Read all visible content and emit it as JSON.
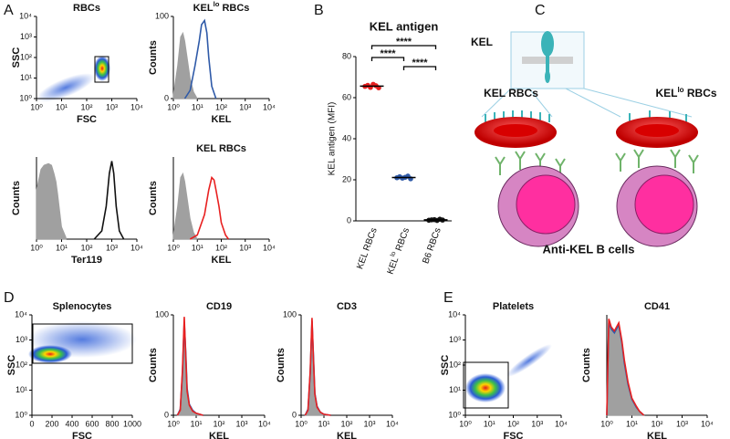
{
  "panel_labels": [
    "A",
    "B",
    "C",
    "D",
    "E"
  ],
  "diagram": {
    "kel": "KEL",
    "left": "KEL RBCs",
    "right": [
      "KEL",
      "lo",
      " RBCs"
    ],
    "bottom": "Anti-KEL B cells"
  },
  "chart_data": [
    {
      "type": "density",
      "title": "RBCs",
      "xlabel": "FSC",
      "ylabel": "SSC",
      "xscale": "log",
      "yscale": "log",
      "xlim": [
        1,
        10000
      ],
      "ylim": [
        1,
        10000
      ],
      "xticks": [
        {
          "value": 1,
          "label": "10⁰"
        },
        {
          "value": 10,
          "label": "10¹"
        },
        {
          "value": 100,
          "label": "10²"
        },
        {
          "value": 1000,
          "label": "10³"
        },
        {
          "value": 10000,
          "label": "10⁴"
        }
      ],
      "yticks": [
        {
          "value": 1,
          "label": "10⁰"
        },
        {
          "value": 10,
          "label": "10¹"
        },
        {
          "value": 100,
          "label": "10²"
        },
        {
          "value": 1000,
          "label": "10³"
        },
        {
          "value": 10000,
          "label": "10⁴"
        }
      ]
    },
    {
      "type": "line",
      "title": [
        "KEL",
        "lo",
        " RBCs"
      ],
      "xlabel": "KEL",
      "ylabel": "Counts",
      "xscale": "log",
      "xlim": [
        1,
        10000
      ],
      "ylim": [
        0,
        100
      ],
      "yticks": [
        0,
        100
      ],
      "xticks": [
        {
          "value": 1,
          "label": "10⁰"
        },
        {
          "value": 10,
          "label": "10¹"
        },
        {
          "value": 100,
          "label": "10²"
        },
        {
          "value": 1000,
          "label": "10³"
        },
        {
          "value": 10000,
          "label": "10⁴"
        }
      ],
      "series": [
        {
          "color": "#a0a0a0",
          "fill": true,
          "x": [
            1,
            1.5,
            2,
            2.5,
            3,
            4,
            5,
            7,
            10
          ],
          "values": [
            5,
            40,
            75,
            80,
            70,
            45,
            25,
            8,
            0
          ]
        },
        {
          "color": "#2f5aa8",
          "fill": false,
          "x": [
            3,
            5,
            8,
            12,
            15,
            20,
            25,
            30,
            40,
            60
          ],
          "values": [
            0,
            10,
            40,
            70,
            90,
            95,
            80,
            50,
            15,
            0
          ]
        }
      ]
    },
    {
      "type": "line",
      "xlabel": "Ter119",
      "ylabel": "Counts",
      "xscale": "log",
      "xlim": [
        1,
        10000
      ],
      "ylim": [
        0,
        100
      ],
      "xticks": [
        {
          "value": 1,
          "label": "10⁰"
        },
        {
          "value": 10,
          "label": "10¹"
        },
        {
          "value": 100,
          "label": "10²"
        },
        {
          "value": 1000,
          "label": "10³"
        },
        {
          "value": 10000,
          "label": "10⁴"
        }
      ],
      "series": [
        {
          "color": "#a0a0a0",
          "fill": true,
          "x": [
            1,
            1.5,
            2,
            3,
            4,
            5,
            6,
            7,
            8,
            10,
            15
          ],
          "values": [
            60,
            85,
            90,
            92,
            90,
            80,
            70,
            55,
            40,
            15,
            2
          ]
        },
        {
          "color": "#111111",
          "fill": false,
          "x": [
            200,
            400,
            600,
            800,
            1000,
            1200,
            1500,
            2000,
            3000
          ],
          "values": [
            0,
            10,
            40,
            80,
            95,
            80,
            40,
            10,
            0
          ]
        }
      ]
    },
    {
      "type": "line",
      "title": "KEL RBCs",
      "xlabel": "KEL",
      "ylabel": "Counts",
      "xscale": "log",
      "xlim": [
        1,
        10000
      ],
      "ylim": [
        0,
        100
      ],
      "xticks": [
        {
          "value": 1,
          "label": "10⁰"
        },
        {
          "value": 10,
          "label": "10¹"
        },
        {
          "value": 100,
          "label": "10²"
        },
        {
          "value": 1000,
          "label": "10³"
        },
        {
          "value": 10000,
          "label": "10⁴"
        }
      ],
      "series": [
        {
          "color": "#a0a0a0",
          "fill": true,
          "x": [
            1,
            1.5,
            2,
            2.5,
            3,
            4,
            5,
            7,
            10
          ],
          "values": [
            5,
            40,
            75,
            80,
            70,
            45,
            25,
            8,
            0
          ]
        },
        {
          "color": "#e82020",
          "fill": false,
          "x": [
            5,
            10,
            20,
            30,
            40,
            50,
            60,
            80,
            100,
            150,
            200
          ],
          "values": [
            0,
            5,
            30,
            60,
            75,
            72,
            60,
            40,
            20,
            5,
            0
          ]
        }
      ]
    },
    {
      "type": "dot",
      "title": "KEL antigen",
      "ylabel": "KEL antigen (MFI)",
      "categories": [
        "KEL RBCs",
        [
          "KEL",
          "lo",
          " RBCs"
        ],
        "B6 RBCs"
      ],
      "colors": [
        "#e82020",
        "#2f5aa8",
        "#111111"
      ],
      "values": [
        [
          65.5,
          66,
          65,
          66.5,
          65.8,
          64.8
        ],
        [
          21,
          21.5,
          20.8,
          21.2,
          21.8,
          20.5
        ],
        [
          0.3,
          0.5,
          0.6,
          0.2,
          0.8,
          0.4
        ]
      ],
      "means": [
        65.6,
        21.1,
        0.5
      ],
      "ylim": [
        0,
        80
      ],
      "yticks": [
        0,
        20,
        40,
        60,
        80
      ],
      "annotations": [
        "****",
        "****",
        "****"
      ]
    },
    {
      "type": "density",
      "title": "Splenocytes",
      "xlabel": "FSC",
      "ylabel": "SSC",
      "yscale": "log",
      "xlim": [
        0,
        1000
      ],
      "ylim": [
        1,
        10000
      ],
      "xticks": [
        0,
        200,
        400,
        600,
        800,
        1000
      ],
      "yticks": [
        {
          "value": 1,
          "label": "10⁰"
        },
        {
          "value": 10,
          "label": "10¹"
        },
        {
          "value": 100,
          "label": "10²"
        },
        {
          "value": 1000,
          "label": "10³"
        },
        {
          "value": 10000,
          "label": "10⁴"
        }
      ]
    },
    {
      "type": "line",
      "title": "CD19",
      "xlabel": "KEL",
      "ylabel": "Counts",
      "xscale": "log",
      "xlim": [
        1,
        10000
      ],
      "ylim": [
        0,
        100
      ],
      "yticks": [
        0,
        100
      ],
      "xticks": [
        {
          "value": 1,
          "label": "10⁰"
        },
        {
          "value": 10,
          "label": "10¹"
        },
        {
          "value": 100,
          "label": "10²"
        },
        {
          "value": 1000,
          "label": "10³"
        },
        {
          "value": 10000,
          "label": "10⁴"
        }
      ],
      "series": [
        {
          "color": "#a0a0a0",
          "fill": true,
          "x": [
            1.5,
            2,
            2.5,
            3,
            3.5,
            4,
            5,
            7,
            10,
            20
          ],
          "values": [
            0,
            5,
            40,
            95,
            60,
            25,
            10,
            4,
            2,
            0
          ]
        },
        {
          "color": "#2f5aa8",
          "fill": false,
          "x": [
            1.5,
            2,
            2.5,
            3,
            3.5,
            4,
            5,
            7,
            10,
            20
          ],
          "values": [
            0,
            6,
            42,
            93,
            62,
            27,
            11,
            5,
            2,
            0
          ]
        },
        {
          "color": "#e82020",
          "fill": false,
          "x": [
            1.5,
            2,
            2.5,
            3,
            3.5,
            4,
            5,
            7,
            10,
            20
          ],
          "values": [
            0,
            5,
            45,
            98,
            58,
            24,
            10,
            4,
            2,
            0
          ]
        }
      ]
    },
    {
      "type": "line",
      "title": "CD3",
      "xlabel": "KEL",
      "ylabel": "Counts",
      "xscale": "log",
      "xlim": [
        1,
        10000
      ],
      "ylim": [
        0,
        100
      ],
      "yticks": [
        0,
        100
      ],
      "xticks": [
        {
          "value": 1,
          "label": "10⁰"
        },
        {
          "value": 10,
          "label": "10¹"
        },
        {
          "value": 100,
          "label": "10²"
        },
        {
          "value": 1000,
          "label": "10³"
        },
        {
          "value": 10000,
          "label": "10⁴"
        }
      ],
      "series": [
        {
          "color": "#a0a0a0",
          "fill": true,
          "x": [
            1.5,
            2,
            2.5,
            3,
            3.5,
            4,
            5,
            7,
            10,
            20
          ],
          "values": [
            0,
            5,
            40,
            95,
            55,
            20,
            8,
            3,
            1,
            0
          ]
        },
        {
          "color": "#2f5aa8",
          "fill": false,
          "x": [
            1.5,
            2,
            2.5,
            3,
            3.5,
            4,
            5,
            7,
            10,
            20
          ],
          "values": [
            0,
            6,
            42,
            94,
            57,
            22,
            9,
            3,
            1,
            0
          ]
        },
        {
          "color": "#e82020",
          "fill": false,
          "x": [
            1.5,
            2,
            2.5,
            3,
            3.5,
            4,
            5,
            7,
            10,
            20
          ],
          "values": [
            0,
            5,
            44,
            97,
            54,
            21,
            8,
            3,
            1,
            0
          ]
        }
      ]
    },
    {
      "type": "density",
      "title": "Platelets",
      "xlabel": "FSC",
      "ylabel": "SSC",
      "xscale": "log",
      "yscale": "log",
      "xlim": [
        1,
        10000
      ],
      "ylim": [
        1,
        10000
      ],
      "xticks": [
        {
          "value": 1,
          "label": "10⁰"
        },
        {
          "value": 10,
          "label": "10¹"
        },
        {
          "value": 100,
          "label": "10²"
        },
        {
          "value": 1000,
          "label": "10³"
        },
        {
          "value": 10000,
          "label": "10⁴"
        }
      ],
      "yticks": [
        {
          "value": 1,
          "label": "10⁰"
        },
        {
          "value": 10,
          "label": "10¹"
        },
        {
          "value": 100,
          "label": "10²"
        },
        {
          "value": 1000,
          "label": "10³"
        },
        {
          "value": 10000,
          "label": "10⁴"
        }
      ]
    },
    {
      "type": "line",
      "title": "CD41",
      "xlabel": "KEL",
      "ylabel": "Counts",
      "xscale": "log",
      "xlim": [
        1,
        10000
      ],
      "ylim": [
        0,
        100
      ],
      "xticks": [
        {
          "value": 1,
          "label": "10⁰"
        },
        {
          "value": 10,
          "label": "10¹"
        },
        {
          "value": 100,
          "label": "10²"
        },
        {
          "value": 1000,
          "label": "10³"
        },
        {
          "value": 10000,
          "label": "10⁴"
        }
      ],
      "series": [
        {
          "color": "#a0a0a0",
          "fill": true,
          "x": [
            1,
            1.2,
            1.5,
            2,
            3,
            4,
            5,
            7,
            10,
            15,
            20,
            30
          ],
          "values": [
            0,
            90,
            85,
            80,
            88,
            70,
            50,
            30,
            15,
            8,
            4,
            0
          ]
        },
        {
          "color": "#2f5aa8",
          "fill": false,
          "x": [
            1,
            1.2,
            1.5,
            2,
            3,
            4,
            5,
            7,
            10,
            15,
            20,
            30
          ],
          "values": [
            0,
            92,
            86,
            82,
            90,
            72,
            52,
            31,
            16,
            8,
            4,
            0
          ]
        },
        {
          "color": "#e82020",
          "fill": false,
          "x": [
            1,
            1.2,
            1.5,
            2,
            3,
            4,
            5,
            7,
            10,
            15,
            20,
            30
          ],
          "values": [
            0,
            96,
            88,
            84,
            92,
            74,
            55,
            33,
            17,
            9,
            4,
            0
          ]
        }
      ]
    }
  ]
}
